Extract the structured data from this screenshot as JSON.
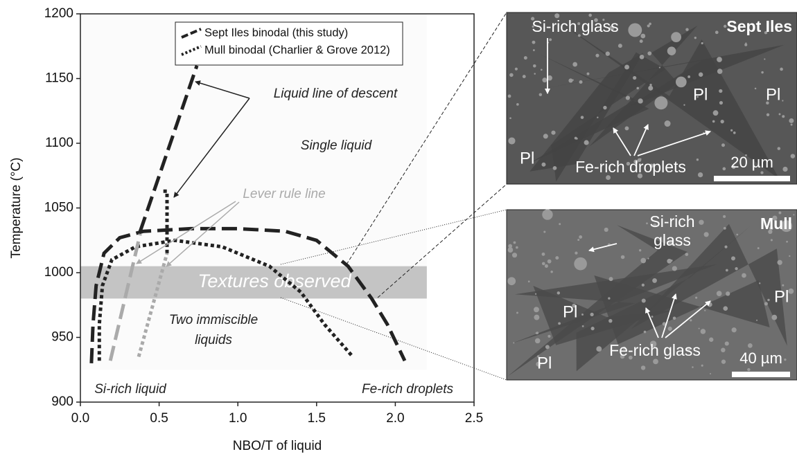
{
  "chart_data": {
    "type": "line",
    "xlabel": "NBO/T of liquid",
    "ylabel": "Temperature (°C)",
    "xlim": [
      0,
      2.5
    ],
    "ylim": [
      900,
      1200
    ],
    "xticks": [
      {
        "value": 0,
        "label": "0.0"
      },
      0.5,
      {
        "value": 1,
        "label": "1.0"
      },
      1.5,
      {
        "value": 2,
        "label": "2.0"
      },
      2.5
    ],
    "yticks": [
      900,
      950,
      1000,
      1050,
      1100,
      1150,
      1200
    ],
    "series": [
      {
        "name": "Sept Iles binodal (this study)",
        "color": "#222222",
        "dash": "dashed",
        "x": [
          0.07,
          0.08,
          0.1,
          0.15,
          0.25,
          0.4,
          0.7,
          1.0,
          1.3,
          1.5,
          1.7,
          1.85,
          1.95,
          2.06,
          null,
          0.38,
          0.74
        ],
        "values": [
          930,
          960,
          990,
          1015,
          1027,
          1032,
          1034,
          1034,
          1032,
          1025,
          1005,
          980,
          960,
          932,
          null,
          1032,
          1160
        ]
      },
      {
        "name": "Mull binodal (Charlier & Grove 2012)",
        "color": "#222222",
        "dash": "dotted",
        "x": [
          0.12,
          0.12,
          0.14,
          0.2,
          0.35,
          0.6,
          0.9,
          1.2,
          1.4,
          1.55,
          1.73,
          null,
          0.55,
          0.55,
          0.52
        ],
        "values": [
          932,
          960,
          990,
          1010,
          1020,
          1025,
          1020,
          1005,
          985,
          960,
          935,
          null,
          1015,
          1063,
          1063
        ]
      },
      {
        "color": "#aaaaaa",
        "dash": "dashed",
        "x": [
          0.19,
          0.38
        ],
        "values": [
          932,
          1030
        ]
      },
      {
        "color": "#aaaaaa",
        "dash": "dotted",
        "x": [
          0.37,
          0.55
        ],
        "values": [
          935,
          1015
        ]
      }
    ],
    "band": {
      "label": "Textures observed",
      "xlim": [
        0,
        2.2
      ],
      "ylim": [
        980,
        1005
      ],
      "color": "#c4c4c4"
    },
    "annotations": [
      "Single liquid",
      "Liquid line of descent",
      "Lever rule line",
      [
        "Two immiscible",
        "liquids"
      ],
      "Si-rich liquid",
      "Fe-rich droplets"
    ]
  },
  "micrographs": [
    {
      "title": "Sept Iles",
      "labels": [
        "Si-rich glass",
        "Pl",
        "Pl",
        "Pl",
        "Fe-rich droplets"
      ],
      "scale_bar": "20 µm"
    },
    {
      "title": "Mull",
      "labels": [
        [
          "Si-rich",
          "glass"
        ],
        "Pl",
        "Pl",
        "Pl",
        "Fe-rich glass"
      ],
      "scale_bar": "40 µm"
    }
  ]
}
